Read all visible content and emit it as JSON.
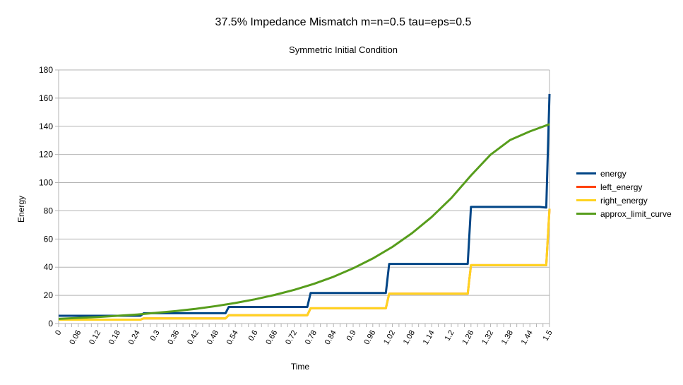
{
  "chart_data": {
    "type": "line",
    "title": "37.5% Impedance Mismatch m=n=0.5 tau=eps=0.5",
    "subtitle": "Symmetric Initial Condition",
    "xlabel": "Time",
    "ylabel": "Energy",
    "xlim": [
      0,
      1.5
    ],
    "ylim": [
      0,
      180
    ],
    "yticks": [
      "0",
      "20",
      "40",
      "60",
      "80",
      "100",
      "120",
      "140",
      "160",
      "180"
    ],
    "yticks_values": [
      0,
      20,
      40,
      60,
      80,
      100,
      120,
      140,
      160,
      180
    ],
    "xticks": [
      "0",
      "0.06",
      "0.12",
      "0.18",
      "0.24",
      "0.3",
      "0.36",
      "0.42",
      "0.48",
      "0.54",
      "0.6",
      "0.66",
      "0.72",
      "0.78",
      "0.84",
      "0.9",
      "0.96",
      "1.02",
      "1.08",
      "1.14",
      "1.2",
      "1.26",
      "1.32",
      "1.38",
      "1.44",
      "1.5"
    ],
    "xticks_values": [
      0,
      0.06,
      0.12,
      0.18,
      0.24,
      0.3,
      0.36,
      0.42,
      0.48,
      0.54,
      0.6,
      0.66,
      0.72,
      0.78,
      0.84,
      0.9,
      0.96,
      1.02,
      1.08,
      1.14,
      1.2,
      1.26,
      1.32,
      1.38,
      1.44,
      1.5
    ],
    "grid": "horizontal",
    "legend_position": "right",
    "series": [
      {
        "name": "energy",
        "color": "#004586",
        "x": [
          0,
          0.25,
          0.26,
          0.51,
          0.52,
          0.76,
          0.77,
          1.0,
          1.01,
          1.25,
          1.26,
          1.47,
          1.49,
          1.5
        ],
        "y": [
          5.5,
          5.5,
          7.3,
          7.3,
          11.8,
          11.8,
          21.7,
          21.7,
          42.3,
          42.3,
          82.8,
          82.8,
          82.3,
          163
        ]
      },
      {
        "name": "left_energy",
        "color": "#ff420e",
        "x": [
          0,
          0.25,
          0.26,
          0.51,
          0.52,
          0.76,
          0.77,
          1.0,
          1.01,
          1.25,
          1.26,
          1.49,
          1.5
        ],
        "y": [
          2.75,
          2.75,
          3.65,
          3.65,
          5.9,
          5.9,
          10.85,
          10.85,
          21.15,
          21.15,
          41.4,
          41.4,
          81.5
        ]
      },
      {
        "name": "right_energy",
        "color": "#ffd320",
        "x": [
          0,
          0.25,
          0.26,
          0.51,
          0.52,
          0.76,
          0.77,
          1.0,
          1.01,
          1.25,
          1.26,
          1.49,
          1.5
        ],
        "y": [
          2.75,
          2.75,
          3.65,
          3.65,
          5.9,
          5.9,
          10.85,
          10.85,
          21.15,
          21.15,
          41.4,
          41.4,
          81.5
        ]
      },
      {
        "name": "approx_limit_curve",
        "color": "#579d1c",
        "x": [
          0,
          0.12,
          0.24,
          0.3,
          0.36,
          0.42,
          0.48,
          0.54,
          0.6,
          0.66,
          0.72,
          0.78,
          0.84,
          0.9,
          0.96,
          1.02,
          1.08,
          1.14,
          1.2,
          1.26,
          1.32,
          1.38,
          1.44,
          1.5
        ],
        "y": [
          3.3,
          4.6,
          6.4,
          7.6,
          8.9,
          10.5,
          12.4,
          14.6,
          17.2,
          20.3,
          23.9,
          28.2,
          33.2,
          39.2,
          46.2,
          54.4,
          64.2,
          75.6,
          89.1,
          105.1,
          119.9,
          130.3,
          136.4,
          141.5
        ]
      }
    ]
  }
}
